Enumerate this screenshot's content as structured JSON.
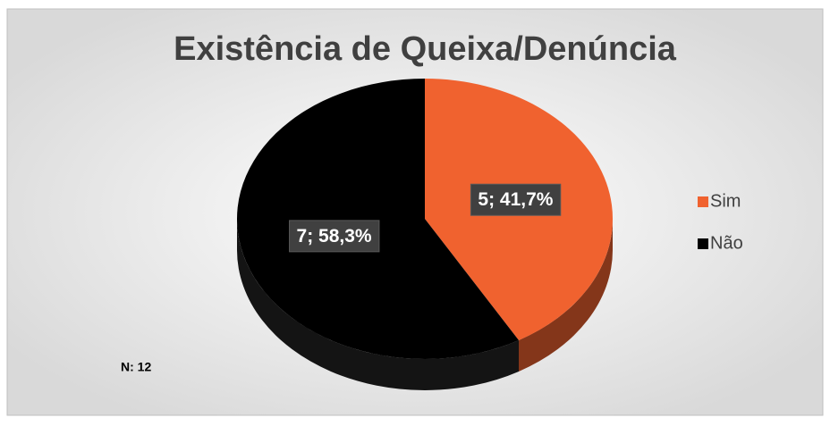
{
  "chart_data": {
    "type": "pie",
    "title": "Existência de Queixa/Denúncia",
    "categories": [
      "Sim",
      "Não"
    ],
    "values": [
      5,
      7
    ],
    "value_labels": [
      "5; 41,7%",
      "7; 58,3%"
    ],
    "colors": [
      "#f0622f",
      "#000000"
    ],
    "legend": "right",
    "annotation": "N: 12"
  }
}
